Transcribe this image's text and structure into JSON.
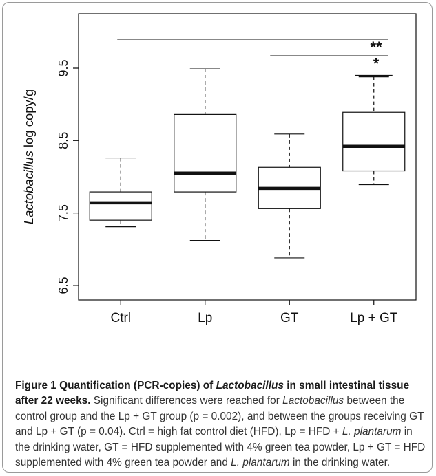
{
  "chart_data": {
    "type": "box",
    "ylabel_italic": "Lactobacillus",
    "ylabel_rest": " log copy/g",
    "ylim": [
      6.3,
      10.25
    ],
    "yticks": [
      6.5,
      7.5,
      8.5,
      9.5
    ],
    "categories": [
      "Ctrl",
      "Lp",
      "GT",
      "Lp + GT"
    ],
    "boxes": [
      {
        "whisker_low": 7.31,
        "q1": 7.4,
        "median": 7.64,
        "q3": 7.79,
        "whisker_high": 8.26
      },
      {
        "whisker_low": 7.12,
        "q1": 7.79,
        "median": 8.05,
        "q3": 8.86,
        "whisker_high": 9.49
      },
      {
        "whisker_low": 6.88,
        "q1": 7.56,
        "median": 7.84,
        "q3": 8.13,
        "whisker_high": 8.59
      },
      {
        "whisker_low": 7.89,
        "q1": 8.08,
        "median": 8.42,
        "q3": 8.89,
        "whisker_high": 9.38
      }
    ],
    "significance": [
      {
        "from": 0,
        "to": 3,
        "y": 9.9,
        "label": "**"
      },
      {
        "from": 2,
        "to": 3,
        "y": 9.67,
        "label": "*"
      }
    ]
  },
  "caption": {
    "title_1": "Figure 1 Quantification (PCR-copies) of ",
    "title_italic": "Lactobacillus",
    "title_2": " in small intestinal tissue after 22 weeks.",
    "text_1": " Significant differences were reached for ",
    "text_italic_1": "Lactobacillus",
    "text_2": " between the control group and the Lp + GT group (p = 0.002), and between the groups receiving GT and Lp + GT (p = 0.04). Ctrl = high fat control diet (HFD), Lp = HFD + ",
    "text_italic_2": "L. plantarum",
    "text_3": " in the drinking water, GT = HFD supplemented with 4% green tea powder, Lp + GT = HFD supplemented with 4% green tea powder and ",
    "text_italic_3": "L. plantarum",
    "text_4": " in the drinking water."
  }
}
